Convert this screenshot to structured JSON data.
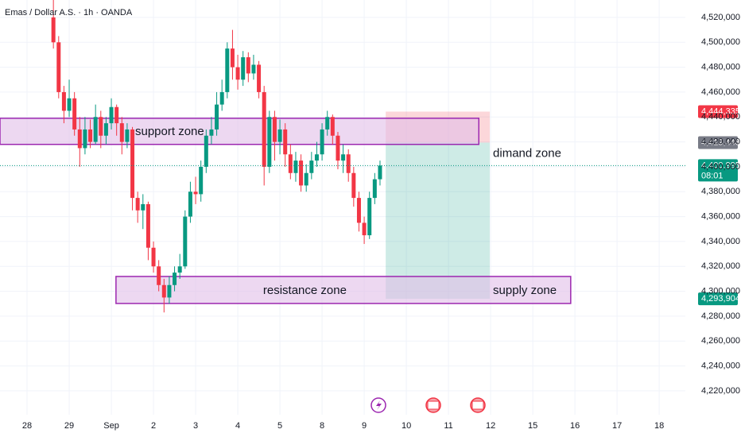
{
  "chart_data": {
    "type": "candlestick",
    "title": "Emas / Dollar A.S. · 1h · OANDA",
    "up_color": "#089981",
    "down_color": "#f23645",
    "grid": true,
    "xlim": [
      -0.642,
      15.62
    ],
    "ylim": [
      4200800,
      4534000
    ],
    "xticks": [
      {
        "value": 0,
        "label": "28"
      },
      {
        "value": 1,
        "label": "29"
      },
      {
        "value": 2,
        "label": "Sep"
      },
      {
        "value": 3,
        "label": "2"
      },
      {
        "value": 4,
        "label": "3"
      },
      {
        "value": 5,
        "label": "4"
      },
      {
        "value": 6,
        "label": "5"
      },
      {
        "value": 7,
        "label": "8"
      },
      {
        "value": 8,
        "label": "9"
      },
      {
        "value": 9,
        "label": "10"
      },
      {
        "value": 10,
        "label": "11"
      },
      {
        "value": 11,
        "label": "12"
      },
      {
        "value": 12,
        "label": "15"
      },
      {
        "value": 13,
        "label": "16"
      },
      {
        "value": 14,
        "label": "17"
      },
      {
        "value": 15,
        "label": "18"
      }
    ],
    "yticks": [
      {
        "value": 4220000,
        "label": "4,220,000"
      },
      {
        "value": 4240000,
        "label": "4,240,000"
      },
      {
        "value": 4260000,
        "label": "4,260,000"
      },
      {
        "value": 4280000,
        "label": "4,280,000"
      },
      {
        "value": 4300000,
        "label": "4,300,000"
      },
      {
        "value": 4320000,
        "label": "4,320,000"
      },
      {
        "value": 4340000,
        "label": "4,340,000"
      },
      {
        "value": 4360000,
        "label": "4,360,000"
      },
      {
        "value": 4380000,
        "label": "4,380,000"
      },
      {
        "value": 4400000,
        "label": "4,400,000"
      },
      {
        "value": 4420000,
        "label": "4,420,000"
      },
      {
        "value": 4440000,
        "label": "4,440,000"
      },
      {
        "value": 4460000,
        "label": "4,460,000"
      },
      {
        "value": 4480000,
        "label": "4,480,000"
      },
      {
        "value": 4500000,
        "label": "4,500,000"
      },
      {
        "value": 4520000,
        "label": "4,520,000"
      }
    ],
    "x": [
      0.625,
      0.75,
      0.875,
      1.0,
      1.125,
      1.25,
      1.375,
      1.5,
      1.625,
      1.75,
      1.875,
      2.0,
      2.125,
      2.25,
      2.375,
      2.5,
      2.625,
      2.75,
      2.875,
      3.0,
      3.125,
      3.25,
      3.375,
      3.5,
      3.625,
      3.75,
      3.875,
      4.0,
      4.125,
      4.25,
      4.375,
      4.5,
      4.625,
      4.75,
      4.875,
      5.0,
      5.125,
      5.25,
      5.375,
      5.5,
      5.625,
      5.75,
      5.875,
      6.0,
      6.125,
      6.25,
      6.375,
      6.5,
      6.625,
      6.75,
      6.875,
      7.0,
      7.125,
      7.25,
      7.375,
      7.5,
      7.625,
      7.75,
      7.875,
      8.0,
      8.125,
      8.25,
      8.375
    ],
    "open": [
      4520000,
      4500000,
      4460000,
      4445000,
      4455000,
      4430000,
      4415000,
      4430000,
      4420000,
      4440000,
      4425000,
      4435000,
      4448000,
      4435000,
      4420000,
      4430000,
      4375000,
      4365000,
      4370000,
      4335000,
      4320000,
      4305000,
      4295000,
      4305000,
      4315000,
      4320000,
      4360000,
      4380000,
      4378000,
      4400000,
      4425000,
      4430000,
      4450000,
      4460000,
      4495000,
      4480000,
      4470000,
      4488000,
      4475000,
      4482000,
      4460000,
      4400000,
      4440000,
      4420000,
      4430000,
      4410000,
      4395000,
      4405000,
      4385000,
      4395000,
      4405000,
      4410000,
      4430000,
      4440000,
      4425000,
      4405000,
      4410000,
      4395000,
      4375000,
      4355000,
      4345000,
      4375000,
      4390000
    ],
    "high": [
      4535000,
      4505000,
      4465000,
      4470000,
      4460000,
      4440000,
      4440000,
      4438000,
      4450000,
      4445000,
      4440000,
      4455000,
      4450000,
      4440000,
      4435000,
      4432000,
      4380000,
      4378000,
      4372000,
      4340000,
      4325000,
      4310000,
      4312000,
      4320000,
      4330000,
      4365000,
      4388000,
      4392000,
      4405000,
      4430000,
      4440000,
      4460000,
      4470000,
      4500000,
      4510000,
      4490000,
      4493000,
      4492000,
      4490000,
      4485000,
      4465000,
      4445000,
      4445000,
      4438000,
      4435000,
      4418000,
      4412000,
      4410000,
      4402000,
      4412000,
      4420000,
      4435000,
      4445000,
      4442000,
      4428000,
      4418000,
      4414000,
      4400000,
      4380000,
      4360000,
      4380000,
      4395000,
      4405000
    ],
    "low": [
      4495000,
      4455000,
      4435000,
      4440000,
      4425000,
      4400000,
      4410000,
      4415000,
      4418000,
      4415000,
      4418000,
      4430000,
      4425000,
      4410000,
      4415000,
      4365000,
      4355000,
      4350000,
      4325000,
      4315000,
      4300000,
      4283000,
      4290000,
      4300000,
      4310000,
      4318000,
      4355000,
      4370000,
      4372000,
      4395000,
      4418000,
      4425000,
      4445000,
      4455000,
      4470000,
      4462000,
      4465000,
      4468000,
      4470000,
      4455000,
      4385000,
      4395000,
      4405000,
      4410000,
      4400000,
      4390000,
      4388000,
      4380000,
      4380000,
      4390000,
      4400000,
      4405000,
      4425000,
      4418000,
      4398000,
      4395000,
      4388000,
      4368000,
      4348000,
      4338000,
      4342000,
      4370000,
      4385000
    ],
    "close": [
      4500000,
      4460000,
      4445000,
      4455000,
      4430000,
      4415000,
      4430000,
      4420000,
      4440000,
      4425000,
      4435000,
      4448000,
      4435000,
      4420000,
      4430000,
      4375000,
      4365000,
      4370000,
      4335000,
      4320000,
      4305000,
      4295000,
      4305000,
      4315000,
      4320000,
      4360000,
      4380000,
      4378000,
      4400000,
      4425000,
      4430000,
      4450000,
      4460000,
      4495000,
      4480000,
      4470000,
      4488000,
      4475000,
      4482000,
      4460000,
      4400000,
      4440000,
      4420000,
      4430000,
      4410000,
      4395000,
      4405000,
      4385000,
      4395000,
      4405000,
      4410000,
      4430000,
      4440000,
      4425000,
      4405000,
      4410000,
      4395000,
      4375000,
      4355000,
      4345000,
      4375000,
      4390000,
      4401000
    ],
    "zones": [
      {
        "label": "support zone",
        "xlim": [
          -0.642,
          10.72
        ],
        "ylim": [
          4418000,
          4439000
        ]
      },
      {
        "label": "resistance zone",
        "xlim": [
          2.11,
          12.9
        ],
        "ylim": [
          4290200,
          4311900
        ]
      }
    ],
    "position": {
      "xlim": [
        8.51,
        10.98
      ],
      "stop": 4444335,
      "entry": 4419448,
      "target": 4293904,
      "annotations": [
        "dimand zone",
        "supply zone"
      ]
    },
    "price_labels": [
      {
        "value": 4444335,
        "label": "4,444,335",
        "color": "#f23645"
      },
      {
        "value": 4419448,
        "label": "4,419,448",
        "color": "#787b86"
      },
      {
        "value": 4400995,
        "label": "4,400,995",
        "sub": "08:01",
        "color": "#089981"
      },
      {
        "value": 4293904,
        "label": "4,293,904",
        "color": "#089981"
      }
    ]
  }
}
